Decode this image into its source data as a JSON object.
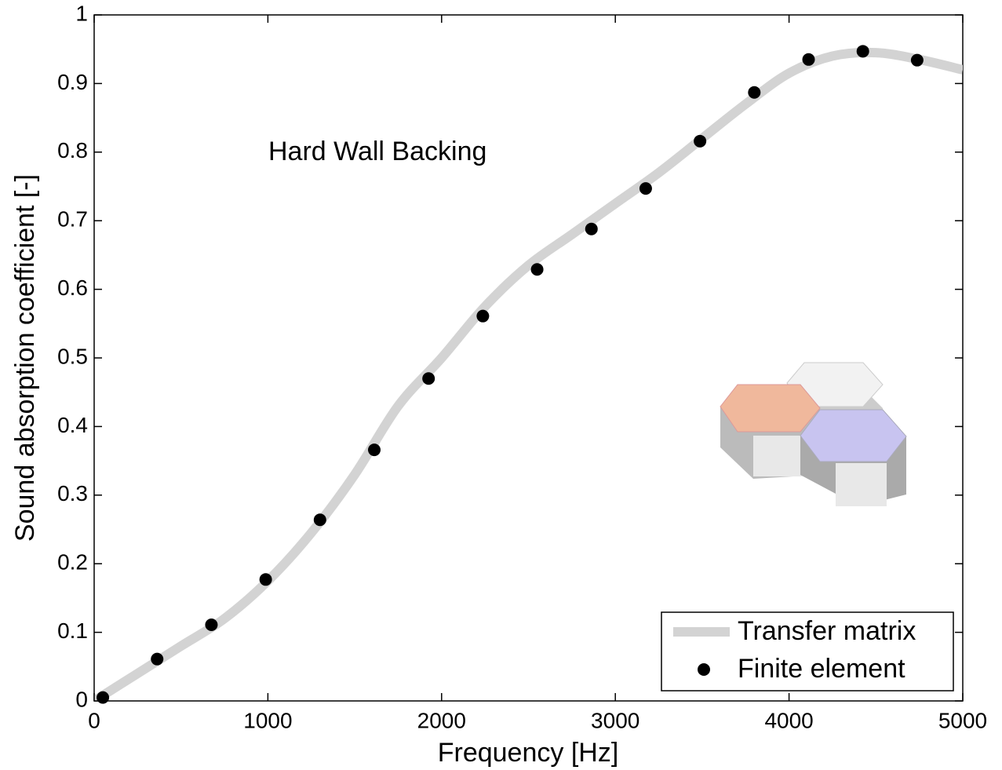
{
  "chart_data": {
    "type": "line",
    "annotation": "Hard Wall Backing",
    "x_label": "Frequency [Hz]",
    "y_label": "Sound absorption coefficient [-]",
    "xlim": [
      0,
      5000
    ],
    "xticks": [
      0,
      1000,
      2000,
      3000,
      4000,
      5000
    ],
    "ylim": [
      0,
      1
    ],
    "yticks": [
      0,
      0.1,
      0.2,
      0.3,
      0.4,
      0.5,
      0.6,
      0.7,
      0.8,
      0.9,
      1
    ],
    "grid": false,
    "legend": "lower right",
    "series": [
      {
        "name": "Transfer matrix",
        "type": "line",
        "color": "#d3d3d3",
        "x": [
          0,
          250,
          500,
          750,
          1000,
          1250,
          1500,
          1750,
          2000,
          2250,
          2500,
          2750,
          3000,
          3250,
          3500,
          3750,
          4000,
          4250,
          4500,
          4750,
          5000
        ],
        "values": [
          0,
          0.04,
          0.08,
          0.12,
          0.175,
          0.245,
          0.33,
          0.43,
          0.5,
          0.575,
          0.635,
          0.68,
          0.725,
          0.77,
          0.82,
          0.87,
          0.915,
          0.94,
          0.945,
          0.935,
          0.92
        ]
      },
      {
        "name": "Finite element",
        "type": "scatter",
        "color": "#000000",
        "x": [
          50,
          362.5,
          675,
          987.5,
          1300,
          1612.5,
          1925,
          2237.5,
          2550,
          2862.5,
          3175,
          3487.5,
          3800,
          4112.5,
          4425,
          4737.5
        ],
        "values": [
          0.005,
          0.061,
          0.111,
          0.177,
          0.264,
          0.366,
          0.47,
          0.561,
          0.629,
          0.688,
          0.747,
          0.816,
          0.887,
          0.935,
          0.947,
          0.934
        ]
      }
    ]
  }
}
